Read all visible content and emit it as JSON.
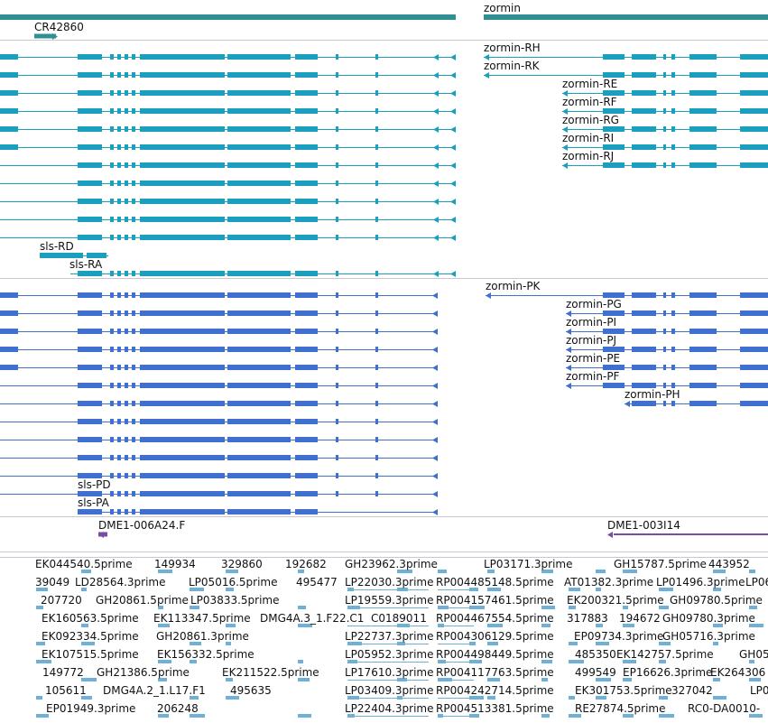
{
  "genes": {
    "left": "",
    "right": "zormin",
    "noncoding": "CR42860"
  },
  "colors": {
    "gene": "#2f8f92",
    "transcript": "#1a9fbf",
    "polypeptide": "#3f6fcf",
    "clone": "#7b4aa5",
    "est": "#6fb1d6",
    "separator": "#c8c8d2"
  },
  "transcripts": {
    "sls": [
      "",
      "",
      "",
      "",
      "",
      "",
      "",
      "",
      "",
      "",
      "sls-RD",
      "sls-RA"
    ],
    "zormin": [
      "zormin-RH",
      "zormin-RK",
      "zormin-RE",
      "zormin-RF",
      "zormin-RG",
      "zormin-RI",
      "zormin-RJ"
    ]
  },
  "polypeptides": {
    "sls": [
      "",
      "",
      "",
      "",
      "",
      "",
      "",
      "",
      "",
      "",
      "",
      "sls-PD",
      "sls-PA"
    ],
    "zormin": [
      "zormin-PK",
      "zormin-PG",
      "zormin-PI",
      "zormin-PJ",
      "zormin-PE",
      "zormin-PF",
      "zormin-PH"
    ]
  },
  "clones": [
    "DME1-006A24.F",
    "DME1-003I14"
  ],
  "ests": [
    {
      "label": "EK044540.5prime"
    },
    {
      "label": "149934"
    },
    {
      "label": "329860"
    },
    {
      "label": "192682"
    },
    {
      "label": "GH23962.3prime"
    },
    {
      "label": "LP03171.3prime"
    },
    {
      "label": "GH15787.5prime"
    },
    {
      "label": "443952"
    },
    {
      "label": "39049"
    },
    {
      "label": "LD28564.3prime"
    },
    {
      "label": "LP05016.5prime"
    },
    {
      "label": "495477"
    },
    {
      "label": "LP22030.3prime"
    },
    {
      "label": "RP004485148.5prime"
    },
    {
      "label": "AT01382.3prime"
    },
    {
      "label": "LP01496.3prime"
    },
    {
      "label": "LP06"
    },
    {
      "label": "207720"
    },
    {
      "label": "GH20861.5prime"
    },
    {
      "label": "LP03833.5prime"
    },
    {
      "label": "LP19559.3prime"
    },
    {
      "label": "RP004157461.5prime"
    },
    {
      "label": "EK200321.5prime"
    },
    {
      "label": "GH09780.5prime"
    },
    {
      "label": "EK160563.5prime"
    },
    {
      "label": "EK113347.5prime"
    },
    {
      "label": "DMG4A.3_1.F22.C1"
    },
    {
      "label": "C0189011"
    },
    {
      "label": "RP004467554.5prime"
    },
    {
      "label": "317883"
    },
    {
      "label": "194672"
    },
    {
      "label": "GH09780.3prime"
    },
    {
      "label": "EK092334.5prime"
    },
    {
      "label": "GH20861.3prime"
    },
    {
      "label": "LP22737.3prime"
    },
    {
      "label": "RP004306129.5prime"
    },
    {
      "label": "EP09734.3prime"
    },
    {
      "label": "GH05716.3prime"
    },
    {
      "label": "EK107515.5prime"
    },
    {
      "label": "EK156332.5prime"
    },
    {
      "label": "LP05952.3prime"
    },
    {
      "label": "RP004498449.5prime"
    },
    {
      "label": "485350"
    },
    {
      "label": "EK142757.5prime"
    },
    {
      "label": "GH05"
    },
    {
      "label": "149772"
    },
    {
      "label": "GH21386.5prime"
    },
    {
      "label": "EK211522.5prime"
    },
    {
      "label": "LP17610.3prime"
    },
    {
      "label": "RP004117763.5prime"
    },
    {
      "label": "499549"
    },
    {
      "label": "EP16626.3prime"
    },
    {
      "label": "EK264306"
    },
    {
      "label": "105611"
    },
    {
      "label": "DMG4A.2_1.L17.F1"
    },
    {
      "label": "495635"
    },
    {
      "label": "LP03409.3prime"
    },
    {
      "label": "RP004242714.5prime"
    },
    {
      "label": "EK301753.5prime"
    },
    {
      "label": "327042"
    },
    {
      "label": "LP0"
    },
    {
      "label": "EP01949.3prime"
    },
    {
      "label": "206248"
    },
    {
      "label": "LP22404.3prime"
    },
    {
      "label": "RP004513381.5prime"
    },
    {
      "label": "RE27874.5prime"
    },
    {
      "label": "RC0-DA0010-"
    }
  ]
}
